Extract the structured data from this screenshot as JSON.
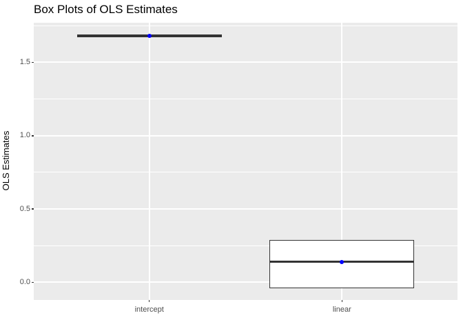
{
  "title": "Box Plots of OLS Estimates",
  "axes": {
    "y": {
      "label": "OLS Estimates",
      "ticks": [
        {
          "value": 0.0,
          "label": "0.0"
        },
        {
          "value": 0.5,
          "label": "0.5"
        },
        {
          "value": 1.0,
          "label": "1.0"
        },
        {
          "value": 1.5,
          "label": "1.5"
        }
      ],
      "minor_ticks": [
        0.25,
        0.75,
        1.25,
        1.75
      ]
    },
    "x": {
      "categories": [
        "intercept",
        "linear"
      ]
    }
  },
  "chart_data": {
    "type": "box",
    "title": "Box Plots of OLS Estimates",
    "xlabel": "",
    "ylabel": "OLS Estimates",
    "categories": [
      "intercept",
      "linear"
    ],
    "ylim": [
      -0.12,
      1.77
    ],
    "grid": "on",
    "boxes": [
      {
        "category": "intercept",
        "q1": 1.67,
        "median": 1.68,
        "q3": 1.69,
        "whisker_low": 1.67,
        "whisker_high": 1.69,
        "point": 1.68
      },
      {
        "category": "linear",
        "q1": -0.04,
        "median": 0.14,
        "q3": 0.29,
        "whisker_low": -0.04,
        "whisker_high": 0.29,
        "point": 0.14
      }
    ]
  },
  "colors": {
    "panel_background": "#EBEBEB",
    "gridline": "#FFFFFF",
    "box_border": "#333333",
    "median_line": "#333333",
    "point": "#0000FF",
    "axis_text": "#4D4D4D",
    "title_text": "#000000"
  }
}
